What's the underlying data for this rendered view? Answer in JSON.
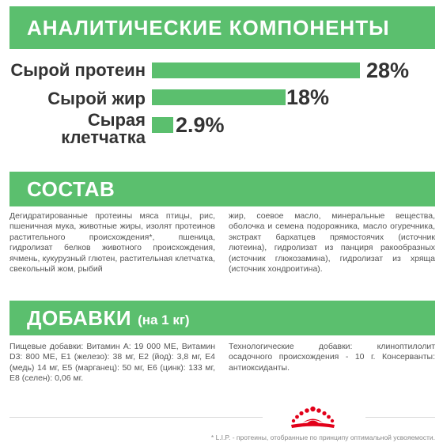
{
  "analytics": {
    "title": "АНАЛИТИЧЕСКИЕ КОМПОНЕНТЫ",
    "items": [
      {
        "label": "Сырой протеин",
        "value": "28%",
        "percent": 28
      },
      {
        "label": "Сырой жир",
        "value": "18%",
        "percent": 18
      },
      {
        "label": "Сырая клетчатка",
        "value": "2.9%",
        "percent": 2.9
      }
    ]
  },
  "composition": {
    "title": "СОСТАВ",
    "col1": "Дегидратированные протеины мяса птицы, рис, пшеничная мука, животные жиры, изолят протеинов растительного происхождения*, пшеница, гидролизат белков животного происхождения, ячмень, кукурузный глютен, растительная клетчатка, свекольный жом, рыбий",
    "col2": "жир, соевое масло, минеральные вещества, оболочка и семена подорожника, масло огуречника, экстракт бархатцев прямостоячих (источник лютеина), гидролизат из панциря ракообразных (источник глюкозамина), гидролизат из хряща (источник хондроитина)."
  },
  "additives": {
    "title": "ДОБАВКИ",
    "subtitle": "(на 1 кг)",
    "col1": "Пищевые добавки: Витамин А: 19 000 МЕ, Витамин D3: 800 МЕ, Е1 (железо): 38 мг, Е2 (йод): 3,8 мг, Е4 (медь) 14 мг, Е5 (марганец): 50 мг, Е6 (цинк): 133 мг, Е8 (селен): 0,06 мг.",
    "col2": "Технологические добавки: клиноптилолит осадочного происхождения - 10 г. Консерванты: антиоксиданты."
  },
  "logo": {
    "icon": "royal-canin-crown-icon",
    "color": "#e2001a"
  },
  "footnote": "* L.I.P. - протеины, отобранные по принципу оптимальной усвояемости.",
  "colors": {
    "accent": "#5bbf6e",
    "logo": "#e2001a"
  }
}
